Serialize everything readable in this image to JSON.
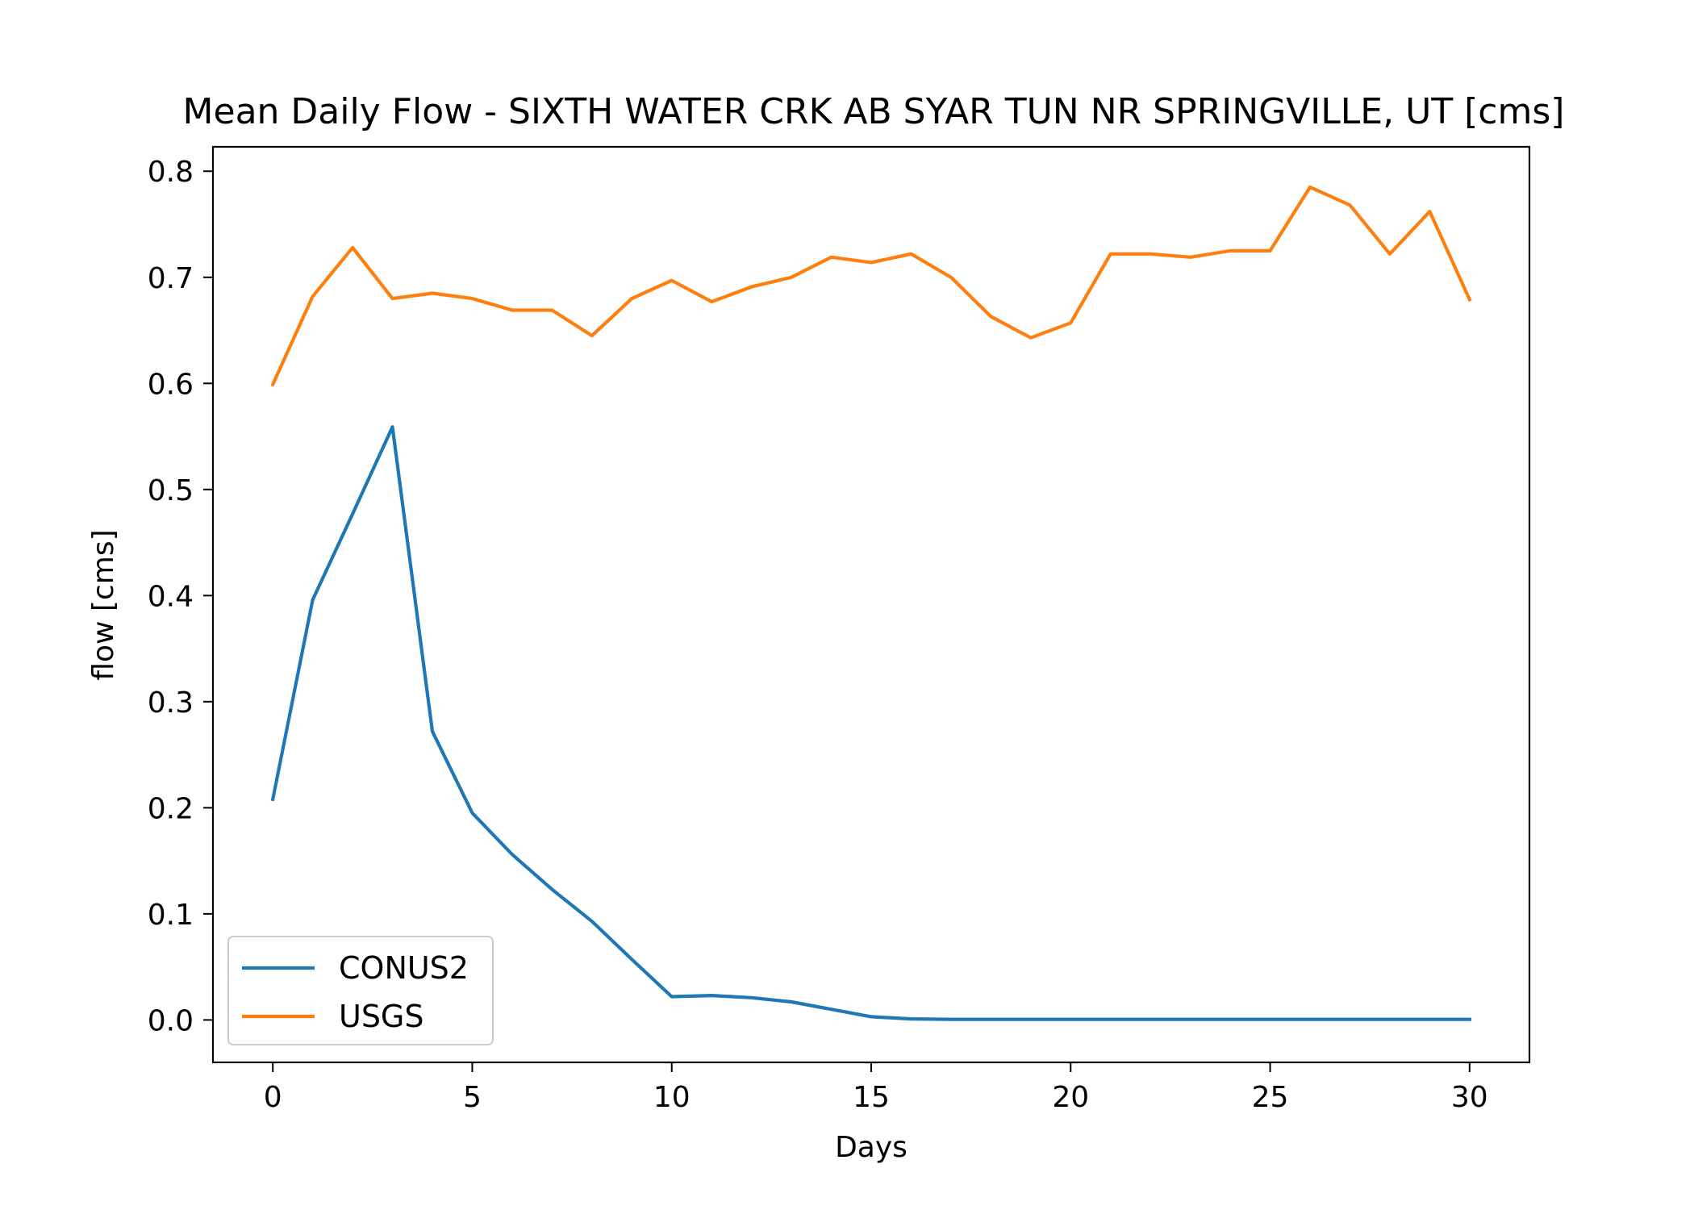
{
  "chart_data": {
    "type": "line",
    "title": "Mean Daily Flow - SIXTH WATER CRK AB SYAR TUN NR SPRINGVILLE, UT [cms]",
    "xlabel": "Days",
    "ylabel": "flow [cms]",
    "xlim": [
      -1.5,
      31.5
    ],
    "ylim": [
      -0.04,
      0.823
    ],
    "x_ticks": [
      0,
      5,
      10,
      15,
      20,
      25,
      30
    ],
    "x_tick_labels": [
      "0",
      "5",
      "10",
      "15",
      "20",
      "25",
      "30"
    ],
    "y_ticks": [
      0.0,
      0.1,
      0.2,
      0.3,
      0.4,
      0.5,
      0.6,
      0.7,
      0.8
    ],
    "y_tick_labels": [
      "0.0",
      "0.1",
      "0.2",
      "0.3",
      "0.4",
      "0.5",
      "0.6",
      "0.7",
      "0.8"
    ],
    "grid": false,
    "legend_position": "lower-left",
    "x": [
      0,
      1,
      2,
      3,
      4,
      5,
      6,
      7,
      8,
      9,
      10,
      11,
      12,
      13,
      14,
      15,
      16,
      17,
      18,
      19,
      20,
      21,
      22,
      23,
      24,
      25,
      26,
      27,
      28,
      29,
      30
    ],
    "series": [
      {
        "name": "CONUS2",
        "color": "#1f77b4",
        "values": [
          0.208,
          0.396,
          0.477,
          0.559,
          0.272,
          0.195,
          0.156,
          0.123,
          0.093,
          0.057,
          0.022,
          0.023,
          0.021,
          0.017,
          0.01,
          0.003,
          0.001,
          0.0005,
          0.0005,
          0.0005,
          0.0005,
          0.0005,
          0.0005,
          0.0005,
          0.0005,
          0.0005,
          0.0005,
          0.0005,
          0.0005,
          0.0005,
          0.0005
        ]
      },
      {
        "name": "USGS",
        "color": "#ff7f0e",
        "values": [
          0.599,
          0.682,
          0.728,
          0.68,
          0.685,
          0.68,
          0.669,
          0.669,
          0.645,
          0.68,
          0.697,
          0.677,
          0.691,
          0.7,
          0.719,
          0.714,
          0.722,
          0.7,
          0.663,
          0.643,
          0.657,
          0.722,
          0.722,
          0.719,
          0.725,
          0.725,
          0.785,
          0.768,
          0.722,
          0.762,
          0.679
        ]
      }
    ]
  }
}
